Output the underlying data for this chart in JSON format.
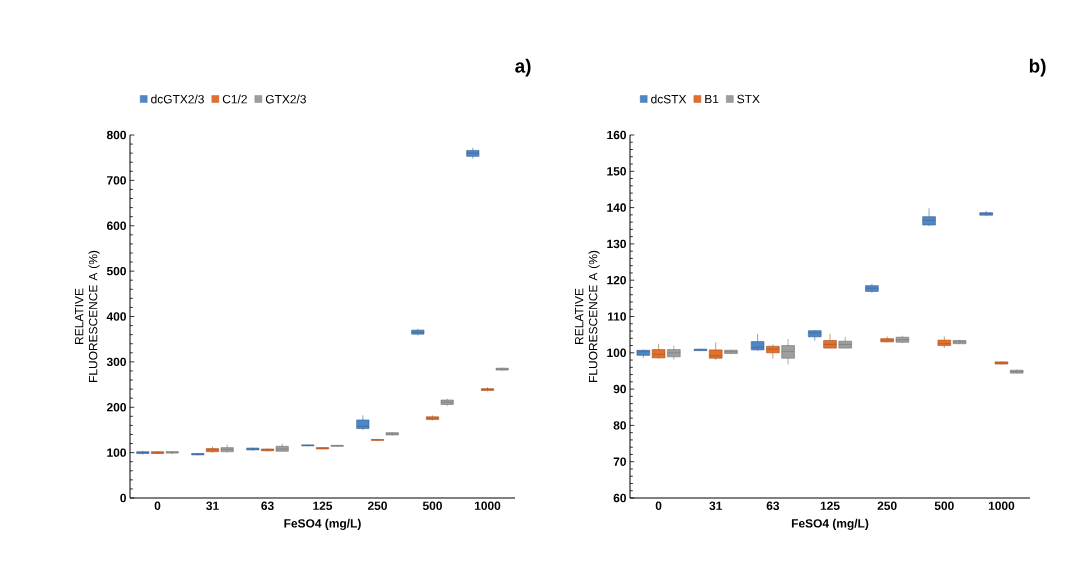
{
  "chart_data": [
    {
      "type": "box",
      "title": "a)",
      "xlabel": "FeSO4 (mg/L)",
      "ylabel": "RELATIVE FLUORESCENCE A (%)",
      "categories": [
        "0",
        "31",
        "63",
        "125",
        "250",
        "500",
        "1000"
      ],
      "ylim": [
        0,
        800
      ],
      "yticks": [
        0,
        100,
        200,
        300,
        400,
        500,
        600,
        700,
        800
      ],
      "legend": "top",
      "series": [
        {
          "name": "dcGTX2/3",
          "color": "#4f86c6",
          "boxes": [
            {
              "low": 96,
              "q1": 98,
              "median": 100,
              "q3": 102,
              "high": 104
            },
            {
              "low": 94,
              "q1": 95,
              "median": 97,
              "q3": 98,
              "high": 99
            },
            {
              "low": 104,
              "q1": 106,
              "median": 108,
              "q3": 110,
              "high": 111
            },
            {
              "low": 114,
              "q1": 115,
              "median": 116,
              "q3": 117,
              "high": 118
            },
            {
              "low": 150,
              "q1": 153,
              "median": 158,
              "q3": 172,
              "high": 182
            },
            {
              "low": 358,
              "q1": 361,
              "median": 365,
              "q3": 370,
              "high": 373
            },
            {
              "low": 748,
              "q1": 753,
              "median": 760,
              "q3": 766,
              "high": 772
            }
          ]
        },
        {
          "name": "C1/2",
          "color": "#e0702c",
          "boxes": [
            {
              "low": 97,
              "q1": 98,
              "median": 100,
              "q3": 102,
              "high": 103
            },
            {
              "low": 100,
              "q1": 102,
              "median": 106,
              "q3": 109,
              "high": 113
            },
            {
              "low": 103,
              "q1": 104,
              "median": 106,
              "q3": 108,
              "high": 109
            },
            {
              "low": 107,
              "q1": 108,
              "median": 110,
              "q3": 111,
              "high": 112
            },
            {
              "low": 126,
              "q1": 127,
              "median": 128,
              "q3": 129,
              "high": 130
            },
            {
              "low": 171,
              "q1": 173,
              "median": 176,
              "q3": 179,
              "high": 182
            },
            {
              "low": 235,
              "q1": 237,
              "median": 239,
              "q3": 241,
              "high": 244
            }
          ]
        },
        {
          "name": "GTX2/3",
          "color": "#9e9e9e",
          "boxes": [
            {
              "low": 96,
              "q1": 99,
              "median": 101,
              "q3": 102,
              "high": 103
            },
            {
              "low": 100,
              "q1": 102,
              "median": 107,
              "q3": 111,
              "high": 118
            },
            {
              "low": 102,
              "q1": 103,
              "median": 108,
              "q3": 114,
              "high": 120
            },
            {
              "low": 113,
              "q1": 114,
              "median": 115,
              "q3": 116,
              "high": 117
            },
            {
              "low": 137,
              "q1": 139,
              "median": 141,
              "q3": 144,
              "high": 146
            },
            {
              "low": 203,
              "q1": 206,
              "median": 211,
              "q3": 216,
              "high": 219
            },
            {
              "low": 280,
              "q1": 282,
              "median": 284,
              "q3": 286,
              "high": 288
            }
          ]
        }
      ]
    },
    {
      "type": "box",
      "title": "b)",
      "xlabel": "FeSO4 (mg/L)",
      "ylabel": "RELATIVE FLUORESCENCE A (%)",
      "categories": [
        "0",
        "31",
        "63",
        "125",
        "250",
        "500",
        "1000"
      ],
      "ylim": [
        60,
        160
      ],
      "yticks": [
        60,
        70,
        80,
        90,
        100,
        110,
        120,
        130,
        140,
        150,
        160
      ],
      "legend": "top",
      "series": [
        {
          "name": "dcSTX",
          "color": "#4f86c6",
          "boxes": [
            {
              "low": 98.6,
              "q1": 99.3,
              "median": 100.3,
              "q3": 100.7,
              "high": 100.9
            },
            {
              "low": 100.6,
              "q1": 100.6,
              "median": 100.8,
              "q3": 101,
              "high": 101.1
            },
            {
              "low": 100.5,
              "q1": 100.8,
              "median": 101.5,
              "q3": 103.1,
              "high": 105.2
            },
            {
              "low": 103.3,
              "q1": 104.4,
              "median": 105.5,
              "q3": 106.1,
              "high": 106.3
            },
            {
              "low": 116.5,
              "q1": 116.9,
              "median": 117.8,
              "q3": 118.5,
              "high": 119
            },
            {
              "low": 134.9,
              "q1": 135.2,
              "median": 136.5,
              "q3": 137.5,
              "high": 139.8
            },
            {
              "low": 137.7,
              "q1": 137.9,
              "median": 138.3,
              "q3": 138.6,
              "high": 139.1
            }
          ]
        },
        {
          "name": "B1",
          "color": "#e0702c",
          "boxes": [
            {
              "low": 98.4,
              "q1": 98.6,
              "median": 99.6,
              "q3": 100.9,
              "high": 102.5
            },
            {
              "low": 98,
              "q1": 98.5,
              "median": 99.2,
              "q3": 100.8,
              "high": 102.9
            },
            {
              "low": 98.4,
              "q1": 100,
              "median": 101,
              "q3": 101.8,
              "high": 102.3
            },
            {
              "low": 101.2,
              "q1": 101.3,
              "median": 102.3,
              "q3": 103.4,
              "high": 105.2
            },
            {
              "low": 102.9,
              "q1": 103,
              "median": 103.5,
              "q3": 103.9,
              "high": 104.5
            },
            {
              "low": 101.3,
              "q1": 102,
              "median": 102.5,
              "q3": 103.5,
              "high": 104.5
            },
            {
              "low": 96.8,
              "q1": 96.9,
              "median": 97.2,
              "q3": 97.5,
              "high": 97.6
            }
          ]
        },
        {
          "name": "STX",
          "color": "#9e9e9e",
          "boxes": [
            {
              "low": 98.2,
              "q1": 98.9,
              "median": 100,
              "q3": 100.9,
              "high": 102
            },
            {
              "low": 99.6,
              "q1": 99.8,
              "median": 100.3,
              "q3": 100.7,
              "high": 100.9
            },
            {
              "low": 96.8,
              "q1": 98.5,
              "median": 100.4,
              "q3": 102,
              "high": 103.8
            },
            {
              "low": 101.2,
              "q1": 101.3,
              "median": 102.3,
              "q3": 103.2,
              "high": 104.4
            },
            {
              "low": 102.7,
              "q1": 102.9,
              "median": 103.6,
              "q3": 104.3,
              "high": 104.7
            },
            {
              "low": 102.4,
              "q1": 102.5,
              "median": 103,
              "q3": 103.4,
              "high": 103.6
            },
            {
              "low": 94.3,
              "q1": 94.4,
              "median": 94.8,
              "q3": 95.2,
              "high": 95.4
            }
          ]
        }
      ]
    }
  ]
}
